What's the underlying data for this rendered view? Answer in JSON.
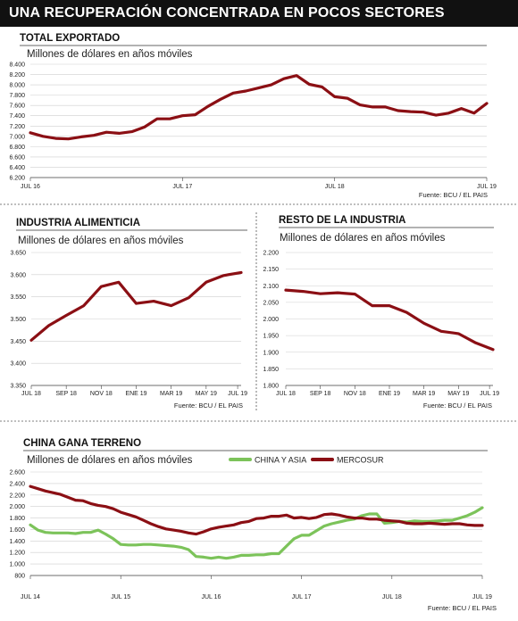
{
  "title": "UNA RECUPERACIÓN CONCENTRADA EN POCOS SECTORES",
  "colors": {
    "red": "#8b0f14",
    "green": "#7cc35a",
    "text": "#222222",
    "grid": "#cccccc"
  },
  "chart_data": [
    {
      "id": "total",
      "type": "line",
      "title": "TOTAL EXPORTADO",
      "subtitle": "Millones de dólares en años móviles",
      "source": "Fuente: BCU / EL PAIS",
      "x_range": [
        0,
        36
      ],
      "ylim": [
        6200,
        8400
      ],
      "yticks": [
        6200,
        6400,
        6600,
        6800,
        7000,
        7200,
        7400,
        7600,
        7800,
        8000,
        8200,
        8400
      ],
      "ytick_labels": [
        "6.200",
        "6.400",
        "6.600",
        "6.800",
        "7.000",
        "7.200",
        "7.400",
        "7.600",
        "7.800",
        "8.000",
        "8.200",
        "8.400"
      ],
      "xticks": [
        {
          "x": 0,
          "label": "JUL 16"
        },
        {
          "x": 12,
          "label": "JUL 17"
        },
        {
          "x": 24,
          "label": "JUL 18"
        },
        {
          "x": 36,
          "label": "JUL 19"
        }
      ],
      "series": [
        {
          "color": "#8b0f14",
          "x": [
            0,
            1,
            2,
            3,
            4,
            5,
            6,
            7,
            8,
            9,
            10,
            11,
            12,
            13,
            14,
            15,
            16,
            17,
            18,
            19,
            20,
            21,
            22,
            23,
            24,
            25,
            26,
            27,
            28,
            29,
            30,
            31,
            32,
            33,
            34,
            35,
            36
          ],
          "values": [
            7070,
            7000,
            6960,
            6950,
            6990,
            7020,
            7080,
            7060,
            7090,
            7180,
            7340,
            7340,
            7400,
            7420,
            7580,
            7720,
            7840,
            7880,
            7940,
            8000,
            8120,
            8180,
            8010,
            7960,
            7770,
            7740,
            7610,
            7570,
            7570,
            7500,
            7480,
            7470,
            7410,
            7450,
            7540,
            7450,
            7640
          ]
        }
      ]
    },
    {
      "id": "alimenticia",
      "type": "line",
      "title": "INDUSTRIA ALIMENTICIA",
      "subtitle": "Millones de dólares en años móviles",
      "source": "Fuente: BCU / EL PAIS",
      "x_range": [
        0,
        12
      ],
      "ylim": [
        3350,
        3650
      ],
      "yticks": [
        3350,
        3400,
        3450,
        3500,
        3550,
        3600,
        3650
      ],
      "ytick_labels": [
        "3.350",
        "3.400",
        "3.450",
        "3.500",
        "3.550",
        "3.600",
        "3.650"
      ],
      "xticks": [
        {
          "x": 0,
          "label": "JUL 18"
        },
        {
          "x": 2,
          "label": "SEP 18"
        },
        {
          "x": 4,
          "label": "NOV 18"
        },
        {
          "x": 6,
          "label": "ENE 19"
        },
        {
          "x": 8,
          "label": "MAR 19"
        },
        {
          "x": 10,
          "label": "MAY 19"
        },
        {
          "x": 11.8,
          "label": "JUL 19"
        }
      ],
      "series": [
        {
          "color": "#8b0f14",
          "x": [
            0,
            1,
            2,
            3,
            4,
            5,
            6,
            7,
            8,
            9,
            10,
            11,
            12
          ],
          "values": [
            3452,
            3485,
            3508,
            3530,
            3573,
            3583,
            3535,
            3540,
            3530,
            3548,
            3583,
            3598,
            3605
          ]
        }
      ]
    },
    {
      "id": "resto",
      "type": "line",
      "title": "RESTO DE LA INDUSTRIA",
      "subtitle": "Millones de dólares en años móviles",
      "source": "Fuente: BCU / EL PAIS",
      "x_range": [
        0,
        12
      ],
      "ylim": [
        1800,
        2200
      ],
      "yticks": [
        1800,
        1850,
        1900,
        1950,
        2000,
        2050,
        2100,
        2150,
        2200
      ],
      "ytick_labels": [
        "1.800",
        "1.850",
        "1.900",
        "1.950",
        "2.000",
        "2.050",
        "2.100",
        "2.150",
        "2.200"
      ],
      "xticks": [
        {
          "x": 0,
          "label": "JUL 18"
        },
        {
          "x": 2,
          "label": "SEP 18"
        },
        {
          "x": 4,
          "label": "NOV 18"
        },
        {
          "x": 6,
          "label": "ENE 19"
        },
        {
          "x": 8,
          "label": "MAR 19"
        },
        {
          "x": 10,
          "label": "MAY 19"
        },
        {
          "x": 11.8,
          "label": "JUL 19"
        }
      ],
      "series": [
        {
          "color": "#8b0f14",
          "x": [
            0,
            1,
            2,
            3,
            4,
            5,
            6,
            7,
            8,
            9,
            10,
            11,
            12
          ],
          "values": [
            2087,
            2083,
            2076,
            2079,
            2075,
            2040,
            2040,
            2020,
            1987,
            1963,
            1956,
            1928,
            1908
          ]
        }
      ]
    },
    {
      "id": "china",
      "type": "line",
      "title": "CHINA GANA TERRENO",
      "subtitle": "Millones de dólares en años móviles",
      "source": "Fuente: BCU / EL PAIS",
      "x_range": [
        0,
        60
      ],
      "ylim": [
        800,
        2600
      ],
      "yticks": [
        800,
        1000,
        1200,
        1400,
        1600,
        1800,
        2000,
        2200,
        2400,
        2600
      ],
      "ytick_labels": [
        "800",
        "1.000",
        "1.200",
        "1.400",
        "1.600",
        "1.800",
        "2.000",
        "2.200",
        "2.400",
        "2.600"
      ],
      "xticks": [
        {
          "x": 0,
          "label": "JUL 14"
        },
        {
          "x": 12,
          "label": "JUL 15"
        },
        {
          "x": 24,
          "label": "JUL 16"
        },
        {
          "x": 36,
          "label": "JUL 17"
        },
        {
          "x": 48,
          "label": "JUL 18"
        },
        {
          "x": 60,
          "label": "JUL 19"
        }
      ],
      "legend": "top",
      "series": [
        {
          "name": "CHINA Y ASIA",
          "color": "#7cc35a",
          "x": [
            0,
            1,
            2,
            3,
            4,
            5,
            6,
            7,
            8,
            9,
            10,
            11,
            12,
            13,
            14,
            15,
            16,
            17,
            18,
            19,
            20,
            21,
            22,
            23,
            24,
            25,
            26,
            27,
            28,
            29,
            30,
            31,
            32,
            33,
            34,
            35,
            36,
            37,
            38,
            39,
            40,
            41,
            42,
            43,
            44,
            45,
            46,
            47,
            48,
            49,
            50,
            51,
            52,
            53,
            54,
            55,
            56,
            57,
            58,
            59,
            60
          ],
          "values": [
            1680,
            1590,
            1550,
            1540,
            1540,
            1540,
            1530,
            1550,
            1550,
            1590,
            1520,
            1440,
            1340,
            1330,
            1330,
            1340,
            1340,
            1330,
            1320,
            1310,
            1290,
            1250,
            1130,
            1120,
            1100,
            1120,
            1100,
            1120,
            1150,
            1150,
            1160,
            1160,
            1180,
            1180,
            1310,
            1440,
            1500,
            1500,
            1580,
            1660,
            1700,
            1730,
            1760,
            1780,
            1840,
            1870,
            1870,
            1710,
            1720,
            1740,
            1730,
            1750,
            1740,
            1740,
            1750,
            1760,
            1760,
            1800,
            1840,
            1900,
            1980
          ]
        },
        {
          "name": "MERCOSUR",
          "color": "#8b0f14",
          "x": [
            0,
            1,
            2,
            3,
            4,
            5,
            6,
            7,
            8,
            9,
            10,
            11,
            12,
            13,
            14,
            15,
            16,
            17,
            18,
            19,
            20,
            21,
            22,
            23,
            24,
            25,
            26,
            27,
            28,
            29,
            30,
            31,
            32,
            33,
            34,
            35,
            36,
            37,
            38,
            39,
            40,
            41,
            42,
            43,
            44,
            45,
            46,
            47,
            48,
            49,
            50,
            51,
            52,
            53,
            54,
            55,
            56,
            57,
            58,
            59,
            60
          ],
          "values": [
            2350,
            2310,
            2270,
            2240,
            2210,
            2160,
            2110,
            2100,
            2050,
            2020,
            2000,
            1960,
            1900,
            1860,
            1820,
            1760,
            1700,
            1650,
            1610,
            1590,
            1570,
            1540,
            1520,
            1560,
            1610,
            1640,
            1660,
            1680,
            1720,
            1740,
            1790,
            1800,
            1830,
            1830,
            1850,
            1800,
            1810,
            1790,
            1810,
            1860,
            1870,
            1850,
            1820,
            1800,
            1800,
            1780,
            1780,
            1760,
            1750,
            1740,
            1710,
            1700,
            1700,
            1710,
            1700,
            1690,
            1700,
            1700,
            1680,
            1670,
            1670
          ]
        }
      ]
    }
  ]
}
